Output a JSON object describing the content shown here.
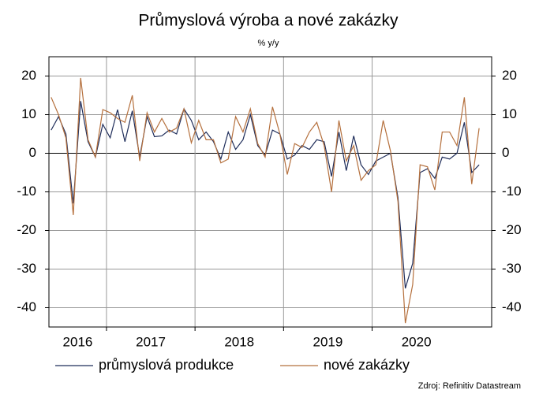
{
  "chart_data": {
    "type": "line",
    "title": "Průmyslová výroba a nové zakázky",
    "subtitle": "% y/y",
    "source": "Zdroj: Refinitiv Datastream",
    "x": [
      2016.375,
      2016.4583,
      2016.5417,
      2016.625,
      2016.7083,
      2016.7917,
      2016.875,
      2016.9583,
      2017.0417,
      2017.125,
      2017.2083,
      2017.2917,
      2017.375,
      2017.4583,
      2017.5417,
      2017.625,
      2017.7083,
      2017.7917,
      2017.875,
      2017.9583,
      2018.0417,
      2018.125,
      2018.2083,
      2018.2917,
      2018.375,
      2018.4583,
      2018.5417,
      2018.625,
      2018.7083,
      2018.7917,
      2018.875,
      2018.9583,
      2019.0417,
      2019.125,
      2019.2083,
      2019.2917,
      2019.375,
      2019.4583,
      2019.5417,
      2019.625,
      2019.7083,
      2019.7917,
      2019.875,
      2019.9583,
      2020.0417,
      2020.125,
      2020.2083,
      2020.2917,
      2020.375,
      2020.4583,
      2020.5417,
      2020.625,
      2020.7083,
      2020.7917,
      2020.875,
      2020.9583,
      2021.0417,
      2021.125,
      2021.2083
    ],
    "series": [
      {
        "name": "průmyslová produkce",
        "color": "#1f2d5a",
        "values": [
          6,
          9.5,
          5,
          -13,
          13.5,
          3,
          -1,
          7.5,
          4,
          11.3,
          3,
          11,
          -1,
          9.5,
          4.3,
          4.5,
          6,
          5,
          11.5,
          8.5,
          3.5,
          5.5,
          3,
          -1.5,
          5.5,
          1,
          3.5,
          10,
          2,
          -0.5,
          6,
          5,
          -1.5,
          -0.5,
          2,
          1,
          3.5,
          3,
          -6,
          5.5,
          -4.5,
          4.5,
          -3,
          -5.5,
          -2,
          -1,
          0,
          -11.5,
          -35,
          -28.5,
          -5,
          -4,
          -6.5,
          -1,
          -1.5,
          0,
          8,
          -5,
          -3
        ]
      },
      {
        "name": "nové zakázky",
        "color": "#b5703d",
        "values": [
          14.5,
          10,
          4,
          -16,
          19.5,
          3.5,
          -1,
          11.3,
          10.5,
          9,
          8,
          15,
          -2,
          10.5,
          5.5,
          9,
          5.5,
          6.5,
          11.5,
          2.7,
          8.5,
          3.5,
          3.5,
          -2.5,
          -1.5,
          9.5,
          5.5,
          11.5,
          2.5,
          -1,
          12,
          5,
          -5.5,
          2.5,
          1.5,
          5.5,
          8,
          2,
          -10,
          8.5,
          -2,
          2,
          -7,
          -4.5,
          -3,
          8.5,
          0.5,
          -12.5,
          -44,
          -34,
          -3,
          -3.5,
          -9.5,
          5.5,
          5.5,
          2,
          14.5,
          -8,
          6.5
        ]
      }
    ],
    "xlim": [
      2016.35,
      2021.35
    ],
    "xticks": [
      {
        "value": 2016,
        "label": "2016"
      },
      {
        "value": 2017,
        "label": "2017"
      },
      {
        "value": 2018,
        "label": "2018"
      },
      {
        "value": 2019,
        "label": "2019"
      },
      {
        "value": 2020,
        "label": "2020"
      }
    ],
    "ylim": [
      -45,
      25
    ],
    "yticks": [
      20,
      10,
      0,
      -10,
      -20,
      -30,
      -40
    ],
    "grid": true
  }
}
